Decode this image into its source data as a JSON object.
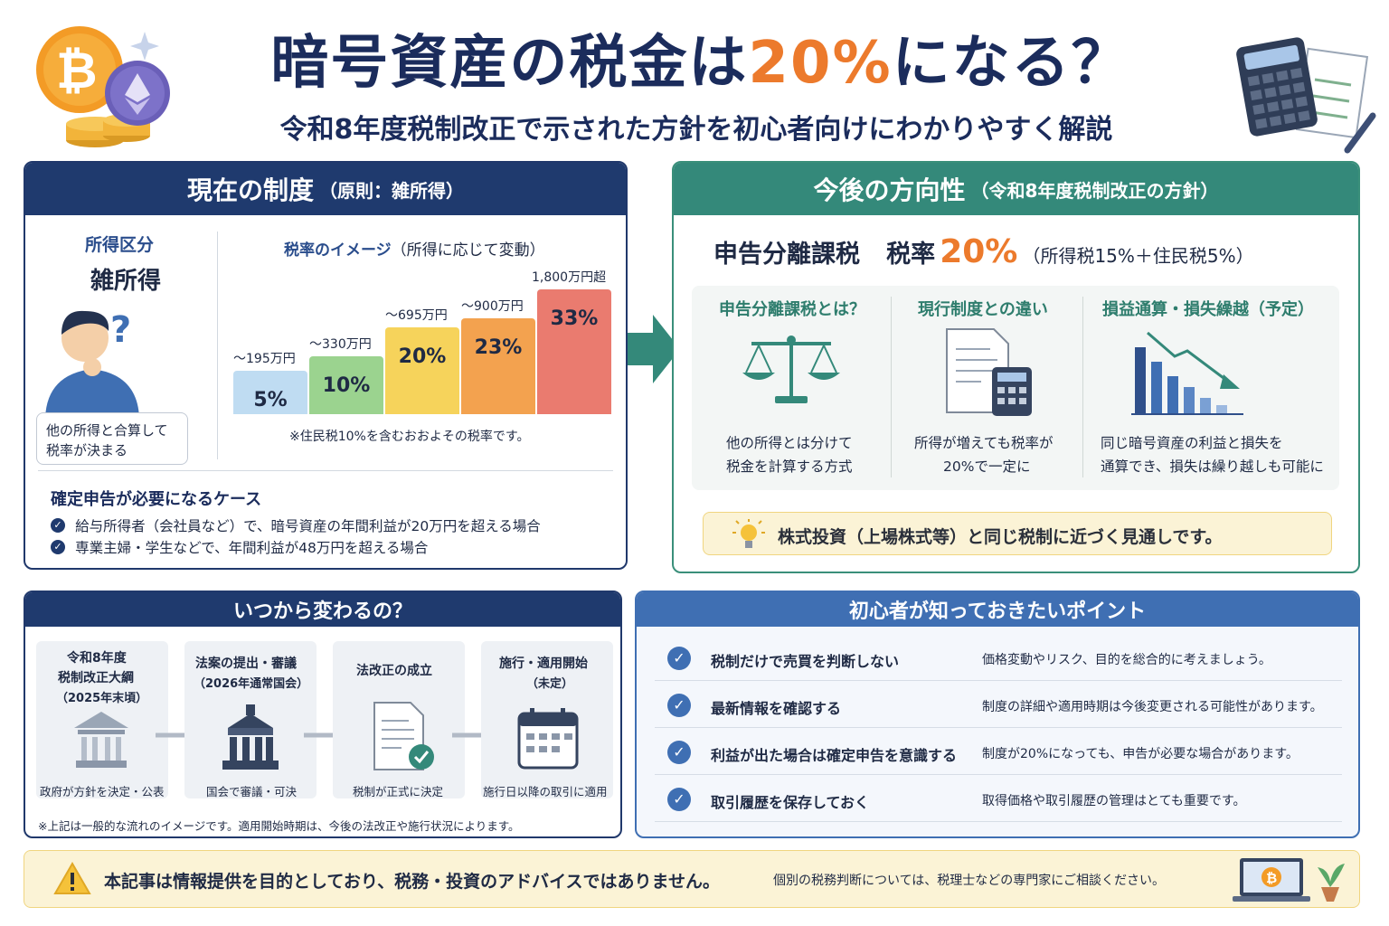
{
  "title": {
    "main": "暗号資産の税金は",
    "highlight": "20%",
    "end": "になる？"
  },
  "subtitle": "令和8年度税制改正で示された方針を初心者向けにわかりやすく解説",
  "current": {
    "header": "現在の制度",
    "header_sub": "（原則：雑所得）",
    "category_label": "所得区分",
    "category_value": "雑所得",
    "bubble": [
      "他の所得と合算して",
      "税率が決まる"
    ],
    "chart_title": "税率のイメージ",
    "chart_title_sub": "（所得に応じて変動）",
    "chart_note": "※住民税10%を含むおおよその税率です。",
    "filing_title": "確定申告が必要になるケース",
    "filing_items": [
      "給与所得者（会社員など）で、暗号資産の年間利益が20万円を超える場合",
      "専業主婦・学生などで、年間利益が48万円を超える場合"
    ]
  },
  "chart_data": {
    "type": "bar",
    "categories": [
      "～195万円",
      "～330万円",
      "～695万円",
      "～900万円",
      "1,800万円超"
    ],
    "values": [
      5,
      10,
      20,
      23,
      33
    ],
    "value_labels": [
      "5%",
      "10%",
      "20%",
      "23%",
      "33%"
    ],
    "colors": [
      "#bfdcf2",
      "#9bd38f",
      "#f6d35b",
      "#f3a24f",
      "#ea7b6f"
    ],
    "title": "税率のイメージ"
  },
  "future": {
    "header": "今後の方向性",
    "header_sub": "（令和8年度税制改正の方針）",
    "main_label": "申告分離課税",
    "rate_label": "税率",
    "rate_value": "20%",
    "rate_detail": "（所得税15%＋住民税5%）",
    "cols": [
      {
        "title": "申告分離課税とは？",
        "desc": [
          "他の所得とは分けて",
          "税金を計算する方式"
        ]
      },
      {
        "title": "現行制度との違い",
        "desc": [
          "所得が増えても税率が",
          "20%で一定に"
        ]
      },
      {
        "title": "損益通算・損失繰越（予定）",
        "desc": [
          "同じ暗号資産の利益と損失を",
          "通算でき、損失は繰り越しも可能に"
        ]
      }
    ],
    "note": "株式投資（上場株式等）と同じ税制に近づく見通しです。"
  },
  "timeline": {
    "header": "いつから変わるの？",
    "steps": [
      {
        "title": [
          "令和8年度",
          "税制改正大綱",
          "（2025年末頃）"
        ],
        "caption": "政府が方針を決定・公表"
      },
      {
        "title": [
          "法案の提出・審議",
          "（2026年通常国会）"
        ],
        "caption": "国会で審議・可決"
      },
      {
        "title": [
          "法改正の成立"
        ],
        "caption": "税制が正式に決定"
      },
      {
        "title": [
          "施行・適用開始",
          "（未定）"
        ],
        "caption": "施行日以降の取引に適用"
      }
    ],
    "note": "※上記は一般的な流れのイメージです。適用開始時期は、今後の法改正や施行状況によります。"
  },
  "points": {
    "header": "初心者が知っておきたいポイント",
    "items": [
      {
        "label": "税制だけで売買を判断しない",
        "desc": "価格変動やリスク、目的を総合的に考えましょう。"
      },
      {
        "label": "最新情報を確認する",
        "desc": "制度の詳細や適用時期は今後変更される可能性があります。"
      },
      {
        "label": "利益が出た場合は確定申告を意識する",
        "desc": "制度が20%になっても、申告が必要な場合があります。"
      },
      {
        "label": "取引履歴を保存しておく",
        "desc": "取得価格や取引履歴の管理はとても重要です。"
      }
    ]
  },
  "disclaimer": {
    "main": "本記事は情報提供を目的としており、税務・投資のアドバイスではありません。",
    "sub": "個別の税務判断については、税理士などの専門家にご相談ください。"
  },
  "icons": {
    "bitcoin": "₿"
  }
}
